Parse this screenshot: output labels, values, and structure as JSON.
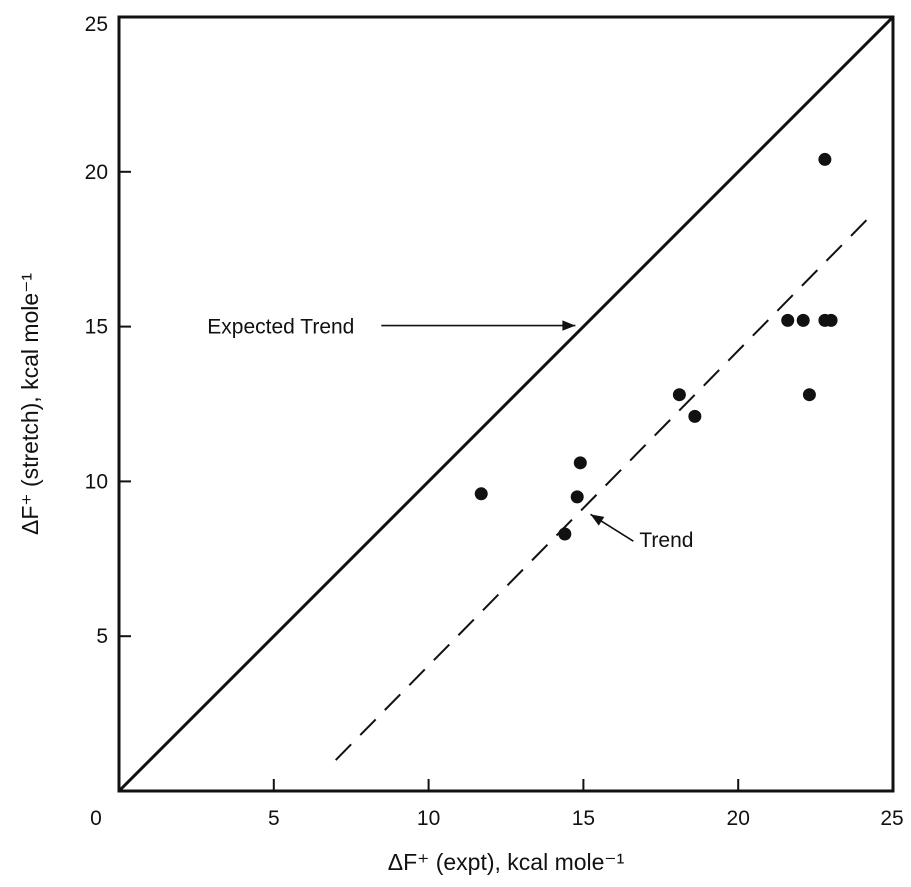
{
  "chart_data": {
    "type": "scatter",
    "title": "",
    "xlabel": "ΔF⁺ (expt), kcal mole⁻¹",
    "ylabel": "ΔF⁺ (stretch), kcal mole⁻¹",
    "xlim": [
      0,
      25
    ],
    "ylim": [
      0,
      25
    ],
    "x_ticks": [
      0,
      5,
      10,
      15,
      20,
      25
    ],
    "x_tick_labels": [
      "0",
      "5",
      "10",
      "15",
      "20",
      "25"
    ],
    "y_ticks": [
      5,
      10,
      15,
      20,
      25
    ],
    "y_tick_labels": [
      "5",
      "10",
      "15",
      "20",
      "25"
    ],
    "grid": false,
    "legend": "none",
    "points": [
      {
        "x": 11.7,
        "y": 9.6
      },
      {
        "x": 14.4,
        "y": 8.3
      },
      {
        "x": 14.8,
        "y": 9.5
      },
      {
        "x": 14.9,
        "y": 10.6
      },
      {
        "x": 18.1,
        "y": 12.8
      },
      {
        "x": 18.6,
        "y": 12.1
      },
      {
        "x": 21.6,
        "y": 15.2
      },
      {
        "x": 22.1,
        "y": 15.2
      },
      {
        "x": 22.3,
        "y": 12.8
      },
      {
        "x": 22.8,
        "y": 20.4
      },
      {
        "x": 22.8,
        "y": 15.2
      },
      {
        "x": 23.0,
        "y": 15.2
      }
    ],
    "lines": [
      {
        "label": "Expected Trend",
        "style": "solid",
        "x": [
          0,
          25
        ],
        "y": [
          0,
          25
        ]
      },
      {
        "label": "Trend",
        "style": "dashed",
        "x": [
          7.0,
          24.4
        ],
        "y": [
          1.0,
          18.7
        ]
      }
    ],
    "annotations": [
      {
        "text": "Expected Trend",
        "target": [
          15.0,
          15.0
        ],
        "text_at": [
          5.5,
          15.0
        ]
      },
      {
        "text": "Trend",
        "target": [
          15.1,
          9.0
        ],
        "text_at": [
          18.1,
          8.1
        ]
      }
    ]
  }
}
